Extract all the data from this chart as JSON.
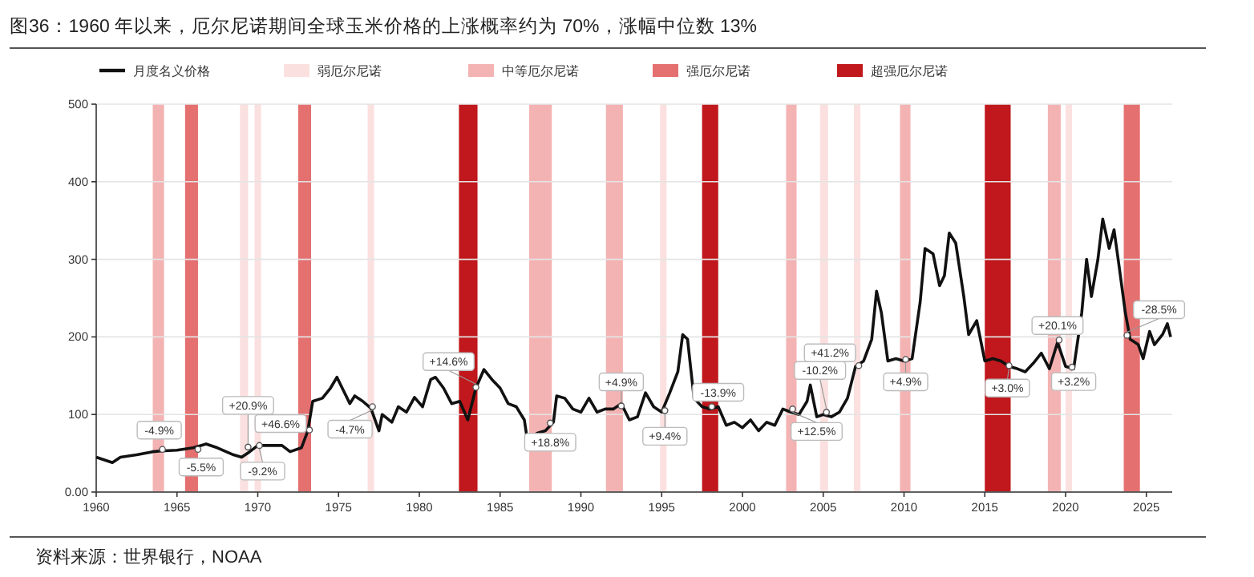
{
  "chart_data": {
    "type": "line",
    "title": "图36：1960 年以来，厄尔尼诺期间全球玉米价格的上涨概率约为 70%，涨幅中位数 13%",
    "x": [
      1960,
      1961,
      1961.5,
      1962.5,
      1963.5,
      1964,
      1965,
      1966,
      1966.8,
      1967.5,
      1968.5,
      1969,
      1969.5,
      1970,
      1970.5,
      1971.5,
      1972,
      1972.7,
      1973.1,
      1973.4,
      1974,
      1974.5,
      1974.9,
      1975.3,
      1975.7,
      1976,
      1976.5,
      1977,
      1977.5,
      1977.7,
      1978.3,
      1978.7,
      1979.2,
      1979.7,
      1980.2,
      1980.7,
      1981,
      1981.5,
      1982,
      1982.5,
      1983,
      1983.5,
      1984,
      1984.5,
      1985,
      1985.5,
      1986,
      1986.5,
      1986.7,
      1987.3,
      1987.8,
      1988.3,
      1988.5,
      1989,
      1989.5,
      1990,
      1990.5,
      1991,
      1991.5,
      1992,
      1992.5,
      1993,
      1993.5,
      1994,
      1994.5,
      1995,
      1995.5,
      1996,
      1996.3,
      1996.6,
      1997,
      1997.5,
      1998,
      1998.5,
      1999,
      1999.5,
      2000,
      2000.5,
      2001,
      2001.5,
      2002,
      2002.5,
      2003,
      2003.5,
      2004,
      2004.2,
      2004.6,
      2005,
      2005.5,
      2006,
      2006.5,
      2007,
      2007.5,
      2008,
      2008.3,
      2008.6,
      2009,
      2009.5,
      2010,
      2010.5,
      2011,
      2011.3,
      2011.8,
      2012.2,
      2012.5,
      2012.8,
      2013.2,
      2013.7,
      2014,
      2014.5,
      2015,
      2015.5,
      2016,
      2016.5,
      2017,
      2017.5,
      2018,
      2018.5,
      2019,
      2019.5,
      2020,
      2020.5,
      2021,
      2021.3,
      2021.6,
      2022,
      2022.3,
      2022.7,
      2023,
      2023.3,
      2023.7,
      2024,
      2024.5,
      2024.8,
      2025.2,
      2025.5,
      2026,
      2026.3,
      2026.5
    ],
    "series": [
      {
        "name": "月度名义价格",
        "color": "#111111",
        "values": [
          45,
          38,
          45,
          48,
          52,
          53,
          54,
          57,
          62,
          57,
          48,
          45,
          52,
          60,
          60,
          60,
          52,
          57,
          79,
          117,
          121,
          134,
          148,
          131,
          114,
          124,
          117,
          108,
          79,
          100,
          90,
          110,
          103,
          122,
          110,
          145,
          148,
          134,
          114,
          117,
          93,
          134,
          158,
          145,
          134,
          114,
          110,
          93,
          65,
          76,
          79,
          90,
          124,
          121,
          107,
          103,
          121,
          103,
          107,
          107,
          114,
          93,
          97,
          128,
          110,
          103,
          128,
          155,
          203,
          197,
          121,
          110,
          107,
          110,
          86,
          90,
          83,
          93,
          79,
          90,
          86,
          107,
          103,
          100,
          117,
          138,
          97,
          100,
          97,
          103,
          121,
          162,
          169,
          197,
          259,
          231,
          169,
          172,
          169,
          172,
          245,
          314,
          307,
          266,
          279,
          334,
          321,
          252,
          203,
          221,
          169,
          172,
          169,
          162,
          159,
          155,
          166,
          179,
          159,
          193,
          162,
          159,
          231,
          300,
          252,
          300,
          352,
          314,
          338,
          293,
          231,
          197,
          190,
          172,
          207,
          190,
          203,
          217,
          200
        ]
      }
    ],
    "xlim": [
      1960,
      2026.6
    ],
    "xticks": [
      1960,
      1965,
      1970,
      1975,
      1980,
      1985,
      1990,
      1995,
      2000,
      2005,
      2010,
      2015,
      2020,
      2025
    ],
    "ylim": [
      0,
      500
    ],
    "yticks": [
      {
        "value": 0,
        "label": "0.00"
      },
      100,
      200,
      300,
      400,
      500
    ],
    "grid": "y",
    "legend": "top",
    "bands": [
      {
        "axis": "x",
        "from": 1968.9,
        "to": 1969.4,
        "label": "弱厄尔尼诺",
        "color": "#fbe0e0"
      },
      {
        "axis": "x",
        "from": 1963.5,
        "to": 1964.2,
        "label": "中等厄尔尼诺",
        "color": "#f4b3b3"
      },
      {
        "axis": "x",
        "from": 1965.5,
        "to": 1966.3,
        "label": "强厄尔尼诺",
        "color": "#e57070"
      },
      {
        "axis": "x",
        "from": 1982.45,
        "to": 1983.6,
        "label": "超强厄尔尼诺",
        "color": "#c0181c"
      },
      {
        "axis": "x",
        "from": 1969.8,
        "to": 1970.2,
        "color": "#fbe0e0"
      },
      {
        "axis": "x",
        "from": 1972.5,
        "to": 1973.3,
        "color": "#e57070"
      },
      {
        "axis": "x",
        "from": 1976.8,
        "to": 1977.2,
        "color": "#fbe0e0"
      },
      {
        "axis": "x",
        "from": 1986.8,
        "to": 1988.2,
        "color": "#f4b3b3"
      },
      {
        "axis": "x",
        "from": 1991.55,
        "to": 1992.6,
        "color": "#f4b3b3"
      },
      {
        "axis": "x",
        "from": 1994.9,
        "to": 1995.3,
        "color": "#fbe0e0"
      },
      {
        "axis": "x",
        "from": 1997.5,
        "to": 1998.5,
        "color": "#c0181c"
      },
      {
        "axis": "x",
        "from": 2002.7,
        "to": 2003.35,
        "color": "#f4b3b3"
      },
      {
        "axis": "x",
        "from": 2004.8,
        "to": 2005.3,
        "color": "#fbe0e0"
      },
      {
        "axis": "x",
        "from": 2006.9,
        "to": 2007.3,
        "color": "#fbe0e0"
      },
      {
        "axis": "x",
        "from": 2009.75,
        "to": 2010.4,
        "color": "#f4b3b3"
      },
      {
        "axis": "x",
        "from": 2015.0,
        "to": 2016.6,
        "color": "#c0181c"
      },
      {
        "axis": "x",
        "from": 2018.9,
        "to": 2019.7,
        "color": "#f4b3b3"
      },
      {
        "axis": "x",
        "from": 2020.0,
        "to": 2020.4,
        "color": "#fbe0e0"
      },
      {
        "axis": "x",
        "from": 2023.6,
        "to": 2024.6,
        "color": "#e57070"
      }
    ],
    "annotations": [
      {
        "text": "-4.9%",
        "x": 1964.1,
        "y": 55
      },
      {
        "text": "-5.5%",
        "x": 1966.3,
        "y": 55
      },
      {
        "text": "+20.9%",
        "x": 1969.4,
        "y": 58
      },
      {
        "text": "-9.2%",
        "x": 1970.1,
        "y": 60
      },
      {
        "text": "+46.6%",
        "x": 1973.2,
        "y": 80
      },
      {
        "text": "-4.7%",
        "x": 1977.1,
        "y": 110
      },
      {
        "text": "+14.6%",
        "x": 1983.5,
        "y": 135
      },
      {
        "text": "+18.8%",
        "x": 1988.1,
        "y": 89
      },
      {
        "text": "+4.9%",
        "x": 1992.5,
        "y": 111
      },
      {
        "text": "+9.4%",
        "x": 1995.2,
        "y": 105
      },
      {
        "text": "-13.9%",
        "x": 1998.1,
        "y": 110
      },
      {
        "text": "+12.5%",
        "x": 2003.1,
        "y": 107
      },
      {
        "text": "-10.2%",
        "x": 2005.2,
        "y": 103
      },
      {
        "text": "+41.2%",
        "x": 2007.2,
        "y": 163
      },
      {
        "text": "+4.9%",
        "x": 2010.1,
        "y": 171
      },
      {
        "text": "+3.0%",
        "x": 2016.5,
        "y": 163
      },
      {
        "text": "+20.1%",
        "x": 2019.6,
        "y": 196
      },
      {
        "text": "+3.2%",
        "x": 2020.4,
        "y": 161
      },
      {
        "text": "-28.5%",
        "x": 2023.8,
        "y": 202
      },
      "资料来源：世界银行，NOAA"
    ]
  }
}
